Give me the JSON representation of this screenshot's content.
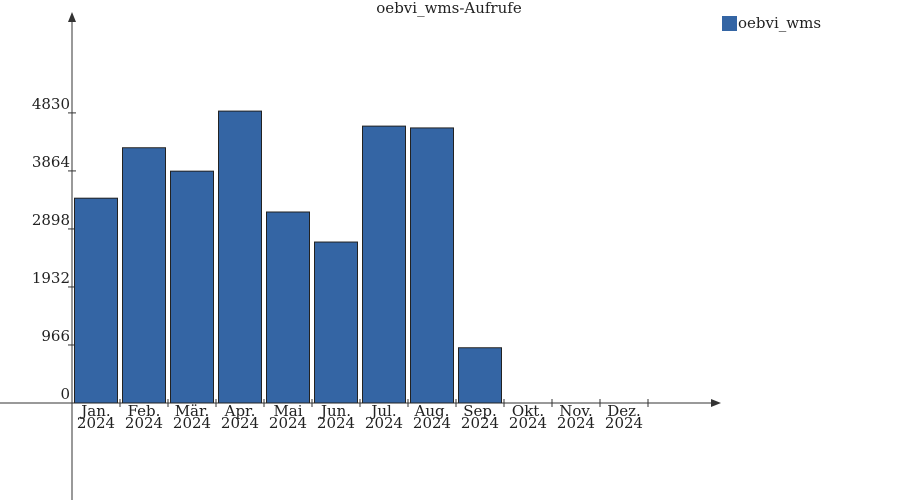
{
  "chart_data": {
    "type": "bar",
    "title": "oebvi_wms-Aufrufe",
    "categories": [
      "Jan. 2024",
      "Feb. 2024",
      "Mär. 2024",
      "Apr. 2024",
      "Mai 2024",
      "Jun. 2024",
      "Jul. 2024",
      "Aug. 2024",
      "Sep. 2024",
      "Okt. 2024",
      "Nov. 2024",
      "Dez. 2024"
    ],
    "series": [
      {
        "name": "oebvi_wms",
        "color": "#3465a4",
        "values": [
          3410,
          4250,
          3860,
          4860,
          3180,
          2680,
          4610,
          4580,
          920,
          0,
          0,
          0
        ]
      }
    ],
    "ylim": [
      0,
      6460
    ],
    "yticks": [
      0,
      966,
      1932,
      2898,
      3864,
      4830
    ],
    "legend": "top-right",
    "grid": false
  }
}
